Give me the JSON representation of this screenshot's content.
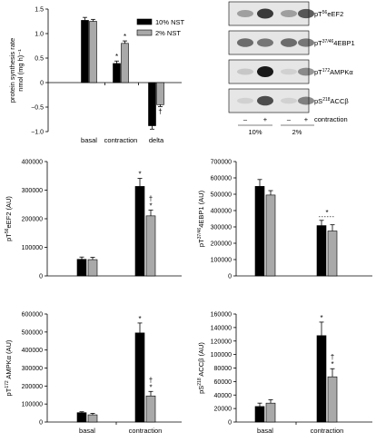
{
  "colors": {
    "black_bar": "#000000",
    "grey_bar": "#a9a9a9",
    "blot_bg": "#e6e6e6",
    "blot_band": "#1a1a1a"
  },
  "chart_data": [
    {
      "id": "synthesis",
      "type": "bar",
      "ylabel_lines": [
        "protein synthesis rate",
        "nmol (mg h)⁻¹"
      ],
      "categories": [
        "basal",
        "contraction",
        "delta"
      ],
      "ylim": [
        -1.0,
        1.5
      ],
      "yticks": [
        "1.5",
        "1.0",
        "0.5",
        "0",
        "−0.5",
        "−1.0"
      ],
      "ytick_values": [
        1.5,
        1.0,
        0.5,
        0,
        -0.5,
        -1.0
      ],
      "legend": [
        "10% NST",
        "2% NST"
      ],
      "legend_position": "top-right",
      "series": [
        {
          "name": "10% NST",
          "color": "#000000",
          "values": [
            1.27,
            0.39,
            -0.88
          ],
          "errors": [
            0.06,
            0.05,
            0.07
          ]
        },
        {
          "name": "2% NST",
          "color": "#a9a9a9",
          "values": [
            1.25,
            0.8,
            -0.45
          ],
          "errors": [
            0.04,
            0.05,
            0.04
          ]
        }
      ],
      "annotations": [
        {
          "text": "*",
          "category": 1,
          "series": 0
        },
        {
          "text": "*",
          "category": 1,
          "series": 1
        },
        {
          "text": "†",
          "category": 2,
          "series": 1
        }
      ]
    },
    {
      "id": "eef2",
      "type": "bar",
      "ylabel_parts": [
        "pT",
        "56",
        "eEF2 (AU)"
      ],
      "categories": [
        "",
        ""
      ],
      "ylim": [
        0,
        400000
      ],
      "yticks": [
        "400000",
        "300000",
        "200000",
        "100000",
        "0"
      ],
      "ytick_values": [
        400000,
        300000,
        200000,
        100000,
        0
      ],
      "series": [
        {
          "name": "",
          "color": "#000000",
          "values": [
            58000,
            313000
          ],
          "errors": [
            8000,
            28000
          ]
        },
        {
          "name": "",
          "color": "#a9a9a9",
          "values": [
            57000,
            210000
          ],
          "errors": [
            8000,
            20000
          ]
        }
      ],
      "annotations": [
        {
          "text": "*",
          "category": 1,
          "series": 0
        },
        {
          "text": "†",
          "category": 1,
          "series": 1,
          "stack": 1
        },
        {
          "text": "*",
          "category": 1,
          "series": 1
        }
      ]
    },
    {
      "id": "4ebp1",
      "type": "bar",
      "ylabel_parts": [
        "pT",
        "37/46",
        "4EBP1 (AU)"
      ],
      "categories": [
        "",
        ""
      ],
      "ylim": [
        0,
        700000
      ],
      "yticks": [
        "700000",
        "600000",
        "500000",
        "400000",
        "300000",
        "200000",
        "100000",
        "0"
      ],
      "ytick_values": [
        700000,
        600000,
        500000,
        400000,
        300000,
        200000,
        100000,
        0
      ],
      "series": [
        {
          "name": "",
          "color": "#000000",
          "values": [
            548000,
            308000
          ],
          "errors": [
            42000,
            32000
          ]
        },
        {
          "name": "",
          "color": "#a9a9a9",
          "values": [
            495000,
            275000
          ],
          "errors": [
            27000,
            38000
          ]
        }
      ],
      "annotations": [
        {
          "text": "*",
          "category": 1,
          "series": "both",
          "bracket": true
        }
      ]
    },
    {
      "id": "ampk",
      "type": "bar",
      "ylabel_parts": [
        "pT",
        "172",
        " AMPKα (AU)"
      ],
      "categories": [
        "basal",
        "contraction"
      ],
      "ylim": [
        0,
        600000
      ],
      "yticks": [
        "600000",
        "500000",
        "400000",
        "300000",
        "200000",
        "100000",
        "0"
      ],
      "ytick_values": [
        600000,
        500000,
        400000,
        300000,
        200000,
        100000,
        0
      ],
      "series": [
        {
          "name": "",
          "color": "#000000",
          "values": [
            52000,
            495000
          ],
          "errors": [
            5000,
            55000
          ]
        },
        {
          "name": "",
          "color": "#a9a9a9",
          "values": [
            40000,
            145000
          ],
          "errors": [
            8000,
            25000
          ]
        }
      ],
      "annotations": [
        {
          "text": "*",
          "category": 1,
          "series": 0
        },
        {
          "text": "†",
          "category": 1,
          "series": 1,
          "stack": 1
        },
        {
          "text": "*",
          "category": 1,
          "series": 1
        }
      ]
    },
    {
      "id": "acc",
      "type": "bar",
      "ylabel_parts": [
        "pS",
        "218",
        " ACCβ (AU)"
      ],
      "categories": [
        "basal",
        "contraction"
      ],
      "ylim": [
        0,
        160000
      ],
      "yticks": [
        "160000",
        "140000",
        "120000",
        "100000",
        "80000",
        "60000",
        "40000",
        "20000",
        "0"
      ],
      "ytick_values": [
        160000,
        140000,
        120000,
        100000,
        80000,
        60000,
        40000,
        20000,
        0
      ],
      "series": [
        {
          "name": "",
          "color": "#000000",
          "values": [
            23000,
            128000
          ],
          "errors": [
            5000,
            20000
          ]
        },
        {
          "name": "",
          "color": "#a9a9a9",
          "values": [
            28000,
            67000
          ],
          "errors": [
            5000,
            12000
          ]
        }
      ],
      "annotations": [
        {
          "text": "*",
          "category": 1,
          "series": 0
        },
        {
          "text": "†",
          "category": 1,
          "series": 1,
          "stack": 1
        },
        {
          "text": "*",
          "category": 1,
          "series": 1
        }
      ]
    }
  ],
  "blots": {
    "rows": [
      {
        "label_parts": [
          "pT",
          "56",
          "eEF2"
        ],
        "pattern": [
          0.35,
          0.85,
          0.35,
          0.7
        ]
      },
      {
        "label_parts": [
          "pT",
          "37/46",
          "4EBP1"
        ],
        "pattern": [
          0.6,
          0.55,
          0.6,
          0.55
        ]
      },
      {
        "label_parts": [
          "pT",
          "172",
          "AMPKα"
        ],
        "pattern": [
          0.15,
          1.0,
          0.1,
          0.45
        ]
      },
      {
        "label_parts": [
          "pS",
          "218",
          "ACCβ"
        ],
        "pattern": [
          0.1,
          0.75,
          0.1,
          0.5
        ]
      }
    ],
    "signs": [
      "–",
      "+",
      "–",
      "+"
    ],
    "contraction_label": "contraction",
    "groups": [
      "10%",
      "2%"
    ]
  }
}
